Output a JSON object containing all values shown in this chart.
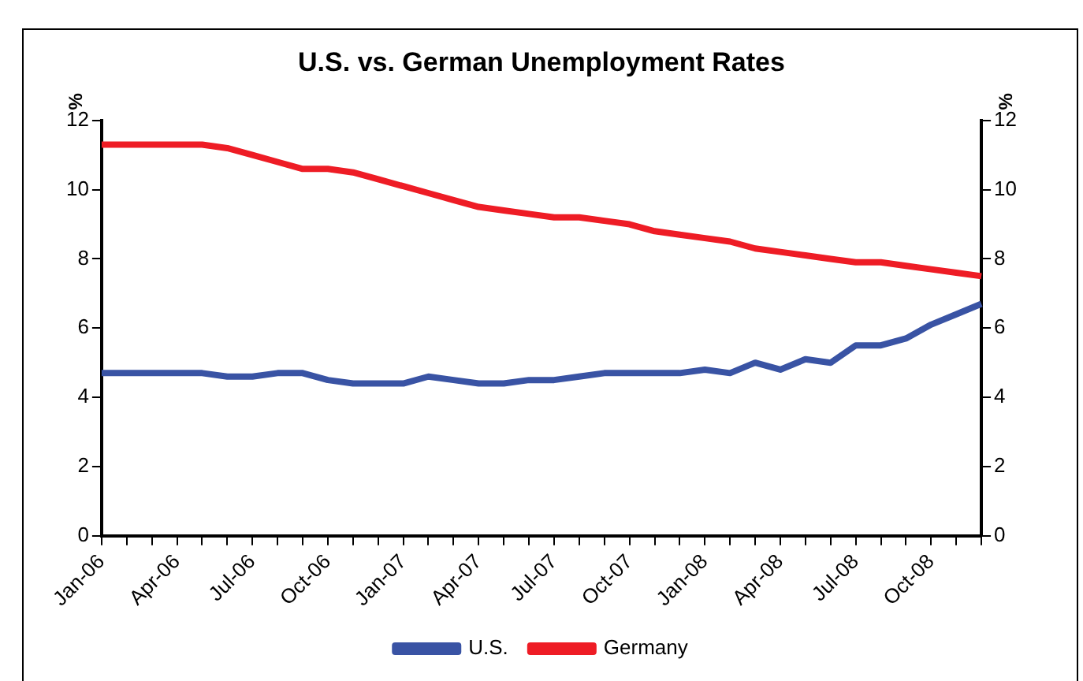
{
  "chart_data": {
    "type": "line",
    "title": "U.S. vs. German Unemployment Rates",
    "ylabel": "%",
    "y2label": "%",
    "categories": [
      "Jan-06",
      null,
      null,
      "Apr-06",
      null,
      null,
      "Jul-06",
      null,
      null,
      "Oct-06",
      null,
      null,
      "Jan-07",
      null,
      null,
      "Apr-07",
      null,
      null,
      "Jul-07",
      null,
      null,
      "Oct-07",
      null,
      null,
      "Jan-08",
      null,
      null,
      "Apr-08",
      null,
      null,
      "Jul-08",
      null,
      null,
      "Oct-08",
      null,
      null
    ],
    "series": [
      {
        "name": "U.S.",
        "color": "#3953a4",
        "values": [
          4.7,
          4.7,
          4.7,
          4.7,
          4.7,
          4.6,
          4.6,
          4.7,
          4.7,
          4.5,
          4.4,
          4.4,
          4.4,
          4.6,
          4.5,
          4.4,
          4.4,
          4.5,
          4.5,
          4.6,
          4.7,
          4.7,
          4.7,
          4.7,
          4.8,
          4.7,
          5.0,
          4.8,
          5.1,
          5.0,
          5.5,
          5.5,
          5.7,
          6.1,
          6.4,
          6.7
        ]
      },
      {
        "name": "Germany",
        "color": "#ee1c25",
        "values": [
          11.3,
          11.3,
          11.3,
          11.3,
          11.3,
          11.2,
          11.0,
          10.8,
          10.6,
          10.6,
          10.5,
          10.3,
          10.1,
          9.9,
          9.7,
          9.5,
          9.4,
          9.3,
          9.2,
          9.2,
          9.1,
          9.0,
          8.8,
          8.7,
          8.6,
          8.5,
          8.3,
          8.2,
          8.1,
          8.0,
          7.9,
          7.9,
          7.8,
          7.7,
          7.6,
          7.5
        ]
      }
    ],
    "ylim": [
      0,
      12
    ],
    "yticks": [
      0,
      2,
      4,
      6,
      8,
      10,
      12
    ],
    "y2lim": [
      0,
      12
    ],
    "y2ticks": [
      0,
      2,
      4,
      6,
      8,
      10,
      12
    ],
    "grid": false,
    "legend": "bottom",
    "marker": "none",
    "line_style": "solid"
  }
}
